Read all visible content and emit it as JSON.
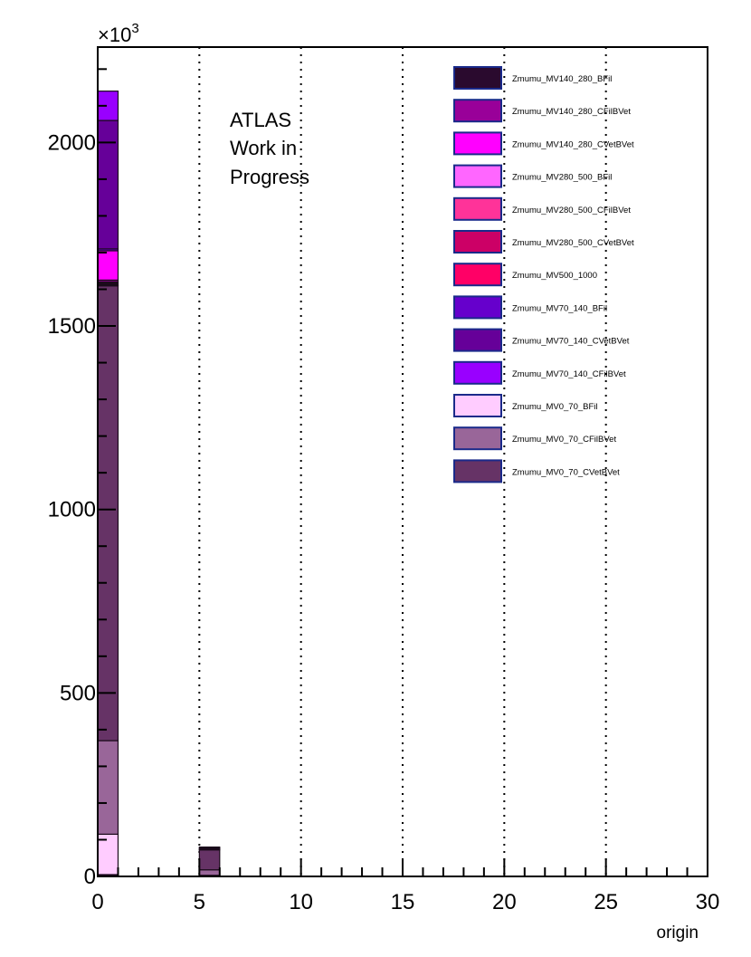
{
  "chart_data": {
    "type": "bar",
    "stacked": true,
    "title": "",
    "xlabel": "origin",
    "ylabel": "",
    "y_multiplier_label": "×10",
    "y_multiplier_exp": "3",
    "xlim": [
      0,
      30
    ],
    "ylim": [
      0,
      2260
    ],
    "bin_width": 1,
    "x_ticks": [
      0,
      5,
      10,
      15,
      20,
      25,
      30
    ],
    "y_ticks": [
      0,
      500,
      1000,
      1500,
      2000
    ],
    "grid_x": [
      5,
      10,
      15,
      20,
      25
    ],
    "grid": "vertical dotted",
    "annotation": [
      "ATLAS",
      "Work in",
      "Progress"
    ],
    "legend_position": "top-right",
    "series": [
      {
        "name": "Zmumu_MV140_280_BFil",
        "color": "#2a0a2e",
        "values": {
          "0": 5,
          "5": 1
        }
      },
      {
        "name": "Zmumu_MV140_280_CFilBVet",
        "color": "#990099",
        "values": {
          "0": 5
        }
      },
      {
        "name": "Zmumu_MV140_280_CVetBVet",
        "color": "#ff00ff",
        "values": {
          "0": 80,
          "5": 1
        }
      },
      {
        "name": "Zmumu_MV280_500_BFil",
        "color": "#ff66ff",
        "values": {
          "0": 3
        }
      },
      {
        "name": "Zmumu_MV280_500_CFilBVet",
        "color": "#ff3399",
        "values": {
          "0": 3
        }
      },
      {
        "name": "Zmumu_MV280_500_CVetBVet",
        "color": "#cc0066",
        "values": {
          "0": 3
        }
      },
      {
        "name": "Zmumu_MV500_1000",
        "color": "#ff0066",
        "values": {
          "0": 1
        }
      },
      {
        "name": "Zmumu_MV70_140_BFil",
        "color": "#6600cc",
        "values": {
          "0": 5,
          "5": 3
        }
      },
      {
        "name": "Zmumu_MV70_140_CVetBVet",
        "color": "#660099",
        "values": {
          "0": 350,
          "5": 3
        }
      },
      {
        "name": "Zmumu_MV70_140_CFilBVet",
        "color": "#9900ff",
        "values": {
          "0": 80
        }
      },
      {
        "name": "Zmumu_MV0_70_BFil",
        "color": "#ffccff",
        "values": {
          "0": 110,
          "5": 2
        }
      },
      {
        "name": "Zmumu_MV0_70_CFilBVet",
        "color": "#996699",
        "values": {
          "0": 255,
          "5": 15
        }
      },
      {
        "name": "Zmumu_MV0_70_CVetBVet",
        "color": "#663366",
        "values": {
          "0": 1240,
          "5": 55
        }
      }
    ],
    "stack_order_bottom_to_top": [
      "Zmumu_MV140_280_BFil",
      "Zmumu_MV0_70_BFil",
      "Zmumu_MV0_70_CFilBVet",
      "Zmumu_MV0_70_CVetBVet",
      "Zmumu_MV500_1000",
      "Zmumu_MV280_500_CVetBVet",
      "Zmumu_MV280_500_CFilBVet",
      "Zmumu_MV280_500_BFil",
      "Zmumu_MV140_280_CFilBVet",
      "Zmumu_MV140_280_CVetBVet",
      "Zmumu_MV70_140_BFil",
      "Zmumu_MV70_140_CVetBVet",
      "Zmumu_MV70_140_CFilBVet"
    ]
  }
}
